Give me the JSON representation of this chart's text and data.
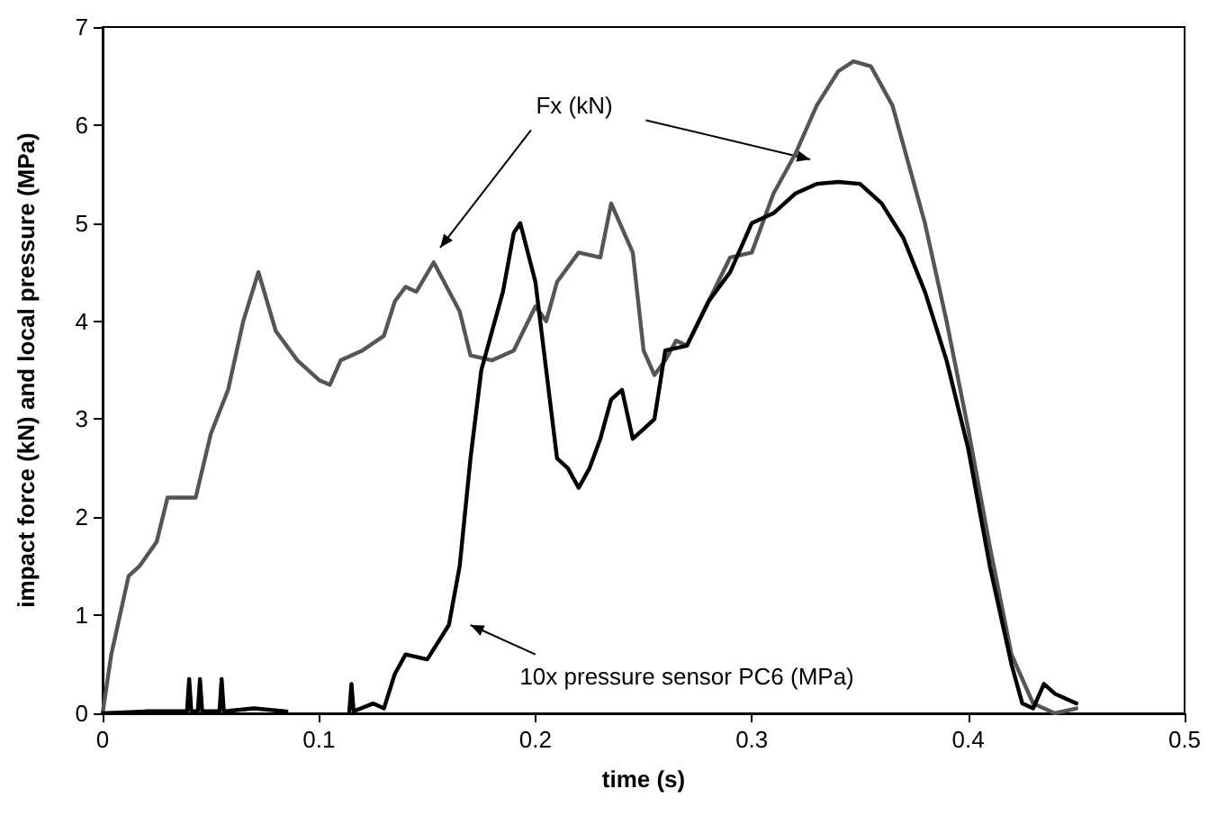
{
  "chart_data": {
    "type": "line",
    "xlabel": "time (s)",
    "ylabel": "impact force (kN) and local pressure (MPa)",
    "xlim": [
      0,
      0.5
    ],
    "xticks": [
      0,
      0.1,
      0.2,
      0.3,
      0.4,
      0.5
    ],
    "ylim": [
      0,
      7
    ],
    "yticks": [
      0,
      1,
      2,
      3,
      4,
      5,
      6,
      7
    ],
    "grid": false,
    "marker": "none",
    "line_style": "solid",
    "annotations": [
      "Fx (kN)",
      "10x pressure sensor PC6 (MPa)"
    ],
    "series": [
      {
        "color": "#555555",
        "x": [
          0,
          0.004,
          0.01,
          0.012,
          0.017,
          0.025,
          0.03,
          0.037,
          0.043,
          0.05,
          0.058,
          0.065,
          0.072,
          0.08,
          0.09,
          0.1,
          0.105,
          0.11,
          0.12,
          0.13,
          0.135,
          0.14,
          0.145,
          0.153,
          0.165,
          0.17,
          0.18,
          0.19,
          0.2,
          0.205,
          0.21,
          0.22,
          0.23,
          0.235,
          0.245,
          0.25,
          0.255,
          0.26,
          0.265,
          0.27,
          0.28,
          0.29,
          0.3,
          0.31,
          0.32,
          0.33,
          0.34,
          0.347,
          0.355,
          0.365,
          0.38,
          0.39,
          0.4,
          0.41,
          0.42,
          0.43,
          0.44,
          0.45
        ],
        "values": [
          0,
          0.6,
          1.2,
          1.4,
          1.5,
          1.75,
          2.2,
          2.2,
          2.2,
          2.85,
          3.3,
          4.0,
          4.5,
          3.9,
          3.6,
          3.4,
          3.35,
          3.6,
          3.7,
          3.85,
          4.2,
          4.35,
          4.3,
          4.6,
          4.1,
          3.65,
          3.6,
          3.7,
          4.15,
          4.0,
          4.4,
          4.7,
          4.65,
          5.2,
          4.7,
          3.7,
          3.45,
          3.6,
          3.8,
          3.75,
          4.2,
          4.65,
          4.7,
          5.3,
          5.7,
          6.2,
          6.55,
          6.65,
          6.6,
          6.2,
          5.0,
          4.0,
          2.9,
          1.7,
          0.6,
          0.1,
          0.0,
          0.05
        ]
      },
      {
        "color": "#000000",
        "x": [
          0,
          0.02,
          0.039,
          0.04,
          0.041,
          0.044,
          0.045,
          0.046,
          0.054,
          0.055,
          0.056,
          0.07,
          0.085,
          0.11,
          0.114,
          0.115,
          0.116,
          0.125,
          0.13,
          0.135,
          0.14,
          0.15,
          0.16,
          0.165,
          0.17,
          0.175,
          0.18,
          0.185,
          0.19,
          0.193,
          0.2,
          0.205,
          0.21,
          0.215,
          0.22,
          0.225,
          0.23,
          0.235,
          0.24,
          0.245,
          0.25,
          0.255,
          0.26,
          0.27,
          0.28,
          0.29,
          0.3,
          0.31,
          0.32,
          0.33,
          0.34,
          0.35,
          0.36,
          0.37,
          0.38,
          0.39,
          0.4,
          0.41,
          0.42,
          0.425,
          0.43,
          0.435,
          0.44,
          0.45
        ],
        "values": [
          0,
          0.02,
          0.02,
          0.35,
          0.02,
          0.02,
          0.35,
          0.02,
          0.02,
          0.35,
          0.02,
          0.05,
          0.02,
          null,
          0.02,
          0.3,
          0.02,
          0.1,
          0.05,
          0.4,
          0.6,
          0.55,
          0.9,
          1.5,
          2.6,
          3.5,
          3.9,
          4.3,
          4.9,
          5.0,
          4.4,
          3.5,
          2.6,
          2.5,
          2.3,
          2.5,
          2.8,
          3.2,
          3.3,
          2.8,
          2.9,
          3.0,
          3.7,
          3.75,
          4.2,
          4.5,
          5.0,
          5.1,
          5.3,
          5.4,
          5.42,
          5.4,
          5.2,
          4.85,
          4.3,
          3.6,
          2.7,
          1.5,
          0.5,
          0.1,
          0.05,
          0.3,
          0.2,
          0.1
        ]
      }
    ]
  }
}
